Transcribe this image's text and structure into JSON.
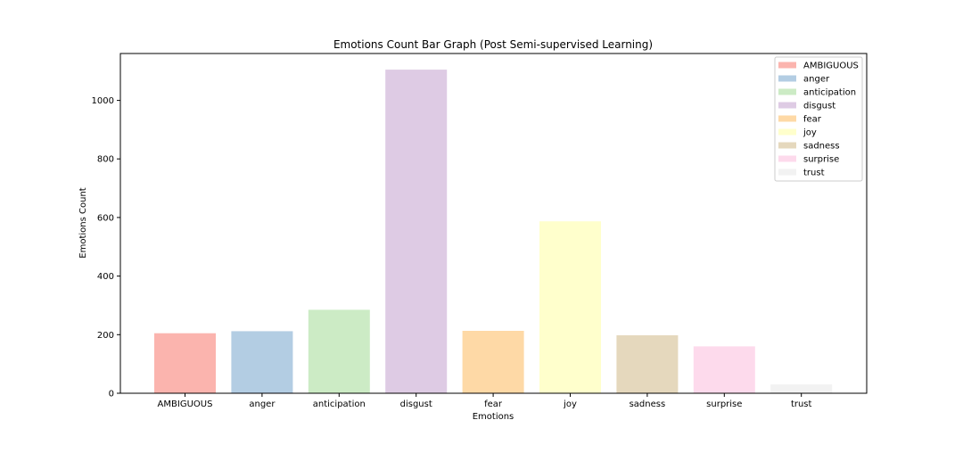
{
  "chart_data": {
    "type": "bar",
    "title": "Emotions Count Bar Graph (Post Semi-supervised Learning)",
    "xlabel": "Emotions",
    "ylabel": "Emotions Count",
    "categories": [
      "AMBIGUOUS",
      "anger",
      "anticipation",
      "disgust",
      "fear",
      "joy",
      "sadness",
      "surprise",
      "trust"
    ],
    "values": [
      205,
      212,
      285,
      1105,
      213,
      587,
      198,
      160,
      30
    ],
    "colors": [
      "#fbb4ae",
      "#b3cde3",
      "#ccebc5",
      "#decbe4",
      "#fed9a6",
      "#ffffcc",
      "#e5d8bd",
      "#fddaec",
      "#f2f2f2"
    ],
    "ylim": [
      0,
      1160
    ],
    "yticks": [
      0,
      200,
      400,
      600,
      800,
      1000
    ],
    "grid": false,
    "legend_position": "top-right"
  }
}
